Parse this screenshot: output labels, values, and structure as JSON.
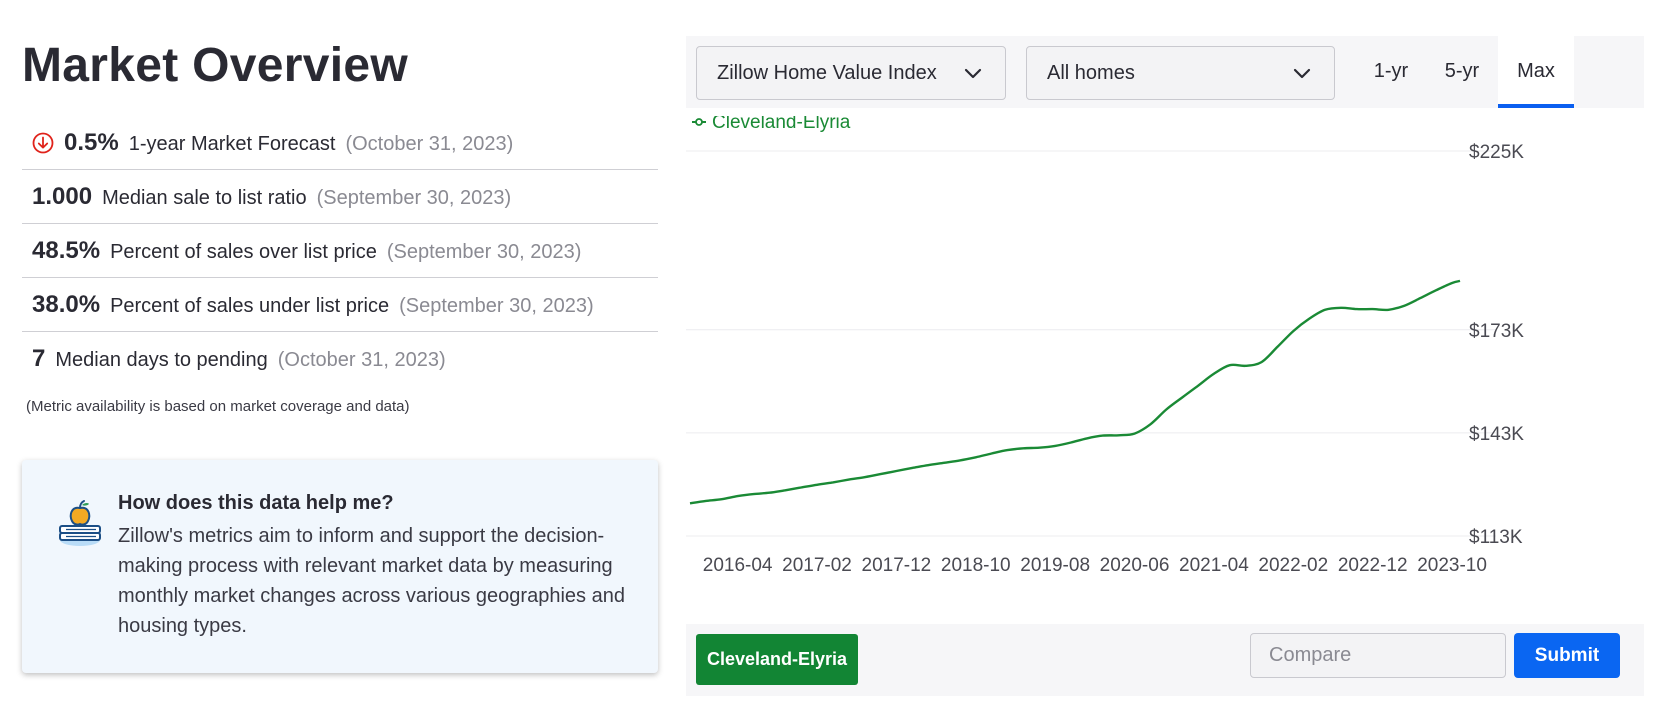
{
  "left": {
    "title": "Market Overview",
    "metrics": [
      {
        "value": "0.5%",
        "label": "1-year Market Forecast",
        "date": "(October 31, 2023)",
        "icon": "down-arrow-circle-icon"
      },
      {
        "value": "1.000",
        "label": "Median sale to list ratio",
        "date": "(September 30, 2023)"
      },
      {
        "value": "48.5%",
        "label": "Percent of sales over list price",
        "date": "(September 30, 2023)"
      },
      {
        "value": "38.0%",
        "label": "Percent of sales under list price",
        "date": "(September 30, 2023)"
      },
      {
        "value": "7",
        "label": "Median days to pending",
        "date": "(October 31, 2023)"
      }
    ],
    "note": "(Metric availability is based on market coverage and data)",
    "help": {
      "icon": "book-apple-icon",
      "heading": "How does this data help me?",
      "body": "Zillow's metrics aim to inform and support the decision-making process with relevant market data by measuring monthly market changes across various geographies and housing types."
    }
  },
  "controls": {
    "metric_select": "Zillow Home Value Index",
    "type_select": "All homes",
    "ranges": [
      "1-yr",
      "5-yr",
      "Max"
    ],
    "active_range": "Max"
  },
  "bottom": {
    "region_chip": "Cleveland-Elyria",
    "compare_placeholder": "Compare",
    "submit_label": "Submit"
  },
  "colors": {
    "series": "#1a8a35",
    "accent_blue": "#0a5ff0",
    "down_red": "#e0231b"
  },
  "chart_data": {
    "type": "line",
    "title": "",
    "xlabel": "",
    "ylabel": "",
    "x_ticks": [
      "2016-04",
      "2017-02",
      "2017-12",
      "2018-10",
      "2019-08",
      "2020-06",
      "2021-04",
      "2022-02",
      "2022-12",
      "2023-10"
    ],
    "y_ticks": [
      113,
      143,
      173,
      225
    ],
    "y_tick_labels": [
      "$113K",
      "$143K",
      "$173K",
      "$225K"
    ],
    "ylim": [
      113,
      225
    ],
    "grid": true,
    "legend": "top-left",
    "series": [
      {
        "name": "Cleveland-Elyria",
        "points": [
          [
            "2015-10",
            122.5
          ],
          [
            "2015-12",
            123.2
          ],
          [
            "2016-02",
            123.7
          ],
          [
            "2016-04",
            124.6
          ],
          [
            "2016-06",
            125.2
          ],
          [
            "2016-08",
            125.6
          ],
          [
            "2016-10",
            126.3
          ],
          [
            "2016-12",
            127.1
          ],
          [
            "2017-02",
            127.9
          ],
          [
            "2017-04",
            128.6
          ],
          [
            "2017-06",
            129.4
          ],
          [
            "2017-08",
            130.1
          ],
          [
            "2017-10",
            131.0
          ],
          [
            "2017-12",
            131.9
          ],
          [
            "2018-02",
            132.8
          ],
          [
            "2018-04",
            133.6
          ],
          [
            "2018-06",
            134.3
          ],
          [
            "2018-08",
            135.0
          ],
          [
            "2018-10",
            135.9
          ],
          [
            "2018-12",
            137.0
          ],
          [
            "2019-02",
            138.0
          ],
          [
            "2019-04",
            138.5
          ],
          [
            "2019-06",
            138.7
          ],
          [
            "2019-08",
            139.2
          ],
          [
            "2019-10",
            140.2
          ],
          [
            "2019-12",
            141.4
          ],
          [
            "2020-02",
            142.2
          ],
          [
            "2020-04",
            142.3
          ],
          [
            "2020-06",
            142.8
          ],
          [
            "2020-08",
            145.5
          ],
          [
            "2020-10",
            149.8
          ],
          [
            "2020-12",
            153.3
          ],
          [
            "2021-02",
            156.7
          ],
          [
            "2021-04",
            160.2
          ],
          [
            "2021-06",
            162.7
          ],
          [
            "2021-08",
            162.5
          ],
          [
            "2021-10",
            163.6
          ],
          [
            "2021-12",
            168.0
          ],
          [
            "2022-02",
            172.6
          ],
          [
            "2022-04",
            176.2
          ],
          [
            "2022-06",
            178.8
          ],
          [
            "2022-08",
            179.4
          ],
          [
            "2022-10",
            179.0
          ],
          [
            "2022-12",
            179.0
          ],
          [
            "2023-02",
            178.8
          ],
          [
            "2023-04",
            180.0
          ],
          [
            "2023-06",
            182.2
          ],
          [
            "2023-08",
            184.5
          ],
          [
            "2023-10",
            186.6
          ],
          [
            "2023-11",
            187.2
          ]
        ]
      }
    ]
  }
}
